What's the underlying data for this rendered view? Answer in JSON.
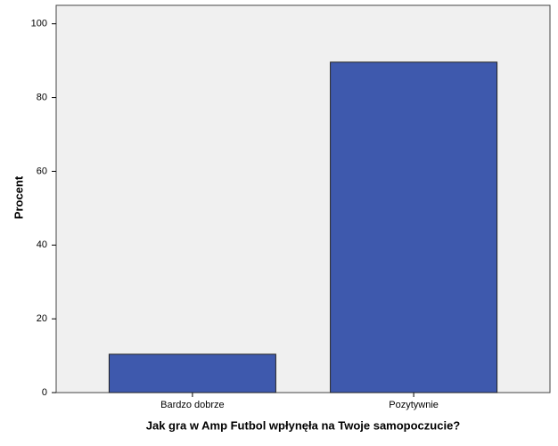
{
  "chart_data": {
    "type": "bar",
    "categories": [
      "Bardzo dobrze",
      "Pozytywnie"
    ],
    "values": [
      10.4,
      89.6
    ],
    "color": "#3e59ad",
    "x_label": "Jak gra w Amp Futbol wpłynęła na Twoje samopoczucie?",
    "y_label": "Procent",
    "ylim": [
      0,
      105
    ],
    "yticks": [
      0,
      20,
      40,
      60,
      80,
      100
    ],
    "grid": false
  }
}
